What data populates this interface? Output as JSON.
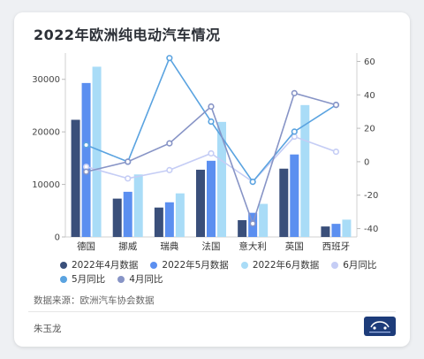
{
  "title": "2022年欧洲纯电动汽车情况",
  "source": "数据来源：欧洲汽车协会数据",
  "author": "朱玉龙",
  "chart_data": {
    "type": "bar",
    "categories": [
      "德国",
      "挪威",
      "瑞典",
      "法国",
      "意大利",
      "英国",
      "西班牙"
    ],
    "ylim_left": [
      0,
      35000
    ],
    "yticks_left": [
      0,
      10000,
      20000,
      30000
    ],
    "ylim_right": [
      -45,
      65
    ],
    "yticks_right": [
      -40,
      -20,
      0,
      20,
      40,
      60
    ],
    "bar_series": [
      {
        "name": "2022年4月数据",
        "color": "#3a4f7a",
        "values": [
          22300,
          7300,
          5600,
          12800,
          3200,
          13000,
          2000
        ]
      },
      {
        "name": "2022年5月数据",
        "color": "#5b8ff0",
        "values": [
          29300,
          8600,
          6600,
          14500,
          4600,
          15700,
          2500
        ]
      },
      {
        "name": "2022年6月数据",
        "color": "#a9dcf7",
        "values": [
          32400,
          11900,
          8300,
          21900,
          6300,
          25100,
          3300
        ]
      }
    ],
    "line_series": [
      {
        "name": "6月同比",
        "color": "#c5cdf5",
        "values": [
          -3,
          -10,
          -5,
          5,
          -12,
          15,
          6
        ]
      },
      {
        "name": "5月同比",
        "color": "#5aa3e0",
        "values": [
          10,
          0,
          62,
          24,
          -12,
          18,
          34
        ]
      },
      {
        "name": "4月同比",
        "color": "#8794c6",
        "values": [
          -6,
          0,
          11,
          33,
          -37,
          41,
          34
        ]
      }
    ],
    "legend_rows": [
      [
        0,
        1,
        2,
        3
      ],
      [
        4,
        5
      ]
    ],
    "legend_labels": [
      "2022年4月数据",
      "2022年5月数据",
      "2022年6月数据",
      "6月同比",
      "5月同比",
      "4月同比"
    ],
    "legend_colors": [
      "#3a4f7a",
      "#5b8ff0",
      "#a9dcf7",
      "#c5cdf5",
      "#5aa3e0",
      "#8794c6"
    ],
    "grid": false
  }
}
